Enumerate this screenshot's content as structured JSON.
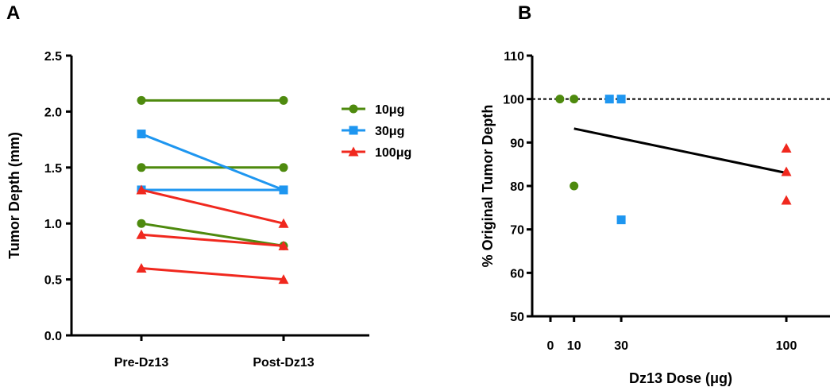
{
  "colors": {
    "10": "#4e8a0e",
    "30": "#1e96f0",
    "100": "#f0281e"
  },
  "chart_data": [
    {
      "panel": "A",
      "type": "line",
      "ylabel": "Tumor Depth (mm)",
      "xlabel": "",
      "categories": [
        "Pre-Dz13",
        "Post-Dz13"
      ],
      "ylim": [
        0,
        2.5
      ],
      "yticks": [
        "0.0",
        "0.5",
        "1.0",
        "1.5",
        "2.0",
        "2.5"
      ],
      "legend_position": "top-right",
      "legend": [
        {
          "label": "10μg",
          "group": "10",
          "marker": "circle"
        },
        {
          "label": "30μg",
          "group": "30",
          "marker": "square"
        },
        {
          "label": "100μg",
          "group": "100",
          "marker": "triangle"
        }
      ],
      "series": [
        {
          "name": "10μg",
          "group": "10",
          "marker": "circle",
          "values": [
            2.1,
            2.1
          ]
        },
        {
          "name": "10μg",
          "group": "10",
          "marker": "circle",
          "values": [
            1.5,
            1.5
          ]
        },
        {
          "name": "10μg",
          "group": "10",
          "marker": "circle",
          "values": [
            1.0,
            0.8
          ]
        },
        {
          "name": "30μg",
          "group": "30",
          "marker": "square",
          "values": [
            1.8,
            1.3
          ]
        },
        {
          "name": "30μg",
          "group": "30",
          "marker": "square",
          "values": [
            1.3,
            1.3
          ]
        },
        {
          "name": "100μg",
          "group": "100",
          "marker": "triangle",
          "values": [
            1.3,
            1.0
          ]
        },
        {
          "name": "100μg",
          "group": "100",
          "marker": "triangle",
          "values": [
            0.9,
            0.8
          ]
        },
        {
          "name": "100μg",
          "group": "100",
          "marker": "triangle",
          "values": [
            0.6,
            0.5
          ]
        }
      ]
    },
    {
      "panel": "B",
      "type": "scatter",
      "ylabel": "% Original Tumor Depth",
      "xlabel": "Dz13 Dose (μg)",
      "ylim": [
        50,
        110
      ],
      "xlim": [
        0,
        120
      ],
      "yticks": [
        "50",
        "60",
        "70",
        "80",
        "90",
        "100",
        "110"
      ],
      "xticks": [
        "0",
        "10",
        "30",
        "100"
      ],
      "reference_line": 100,
      "regression": {
        "x": [
          10,
          100
        ],
        "y": [
          93.2,
          83.0
        ]
      },
      "points": [
        {
          "x": 4,
          "y": 100,
          "group": "10",
          "marker": "circle"
        },
        {
          "x": 10,
          "y": 100,
          "group": "10",
          "marker": "circle"
        },
        {
          "x": 10,
          "y": 80,
          "group": "10",
          "marker": "circle"
        },
        {
          "x": 25,
          "y": 100,
          "group": "30",
          "marker": "square"
        },
        {
          "x": 30,
          "y": 100,
          "group": "30",
          "marker": "square"
        },
        {
          "x": 30,
          "y": 72.2,
          "group": "30",
          "marker": "square"
        },
        {
          "x": 100,
          "y": 88.7,
          "group": "100",
          "marker": "triangle"
        },
        {
          "x": 100,
          "y": 83.3,
          "group": "100",
          "marker": "triangle"
        },
        {
          "x": 100,
          "y": 76.7,
          "group": "100",
          "marker": "triangle"
        }
      ]
    }
  ]
}
